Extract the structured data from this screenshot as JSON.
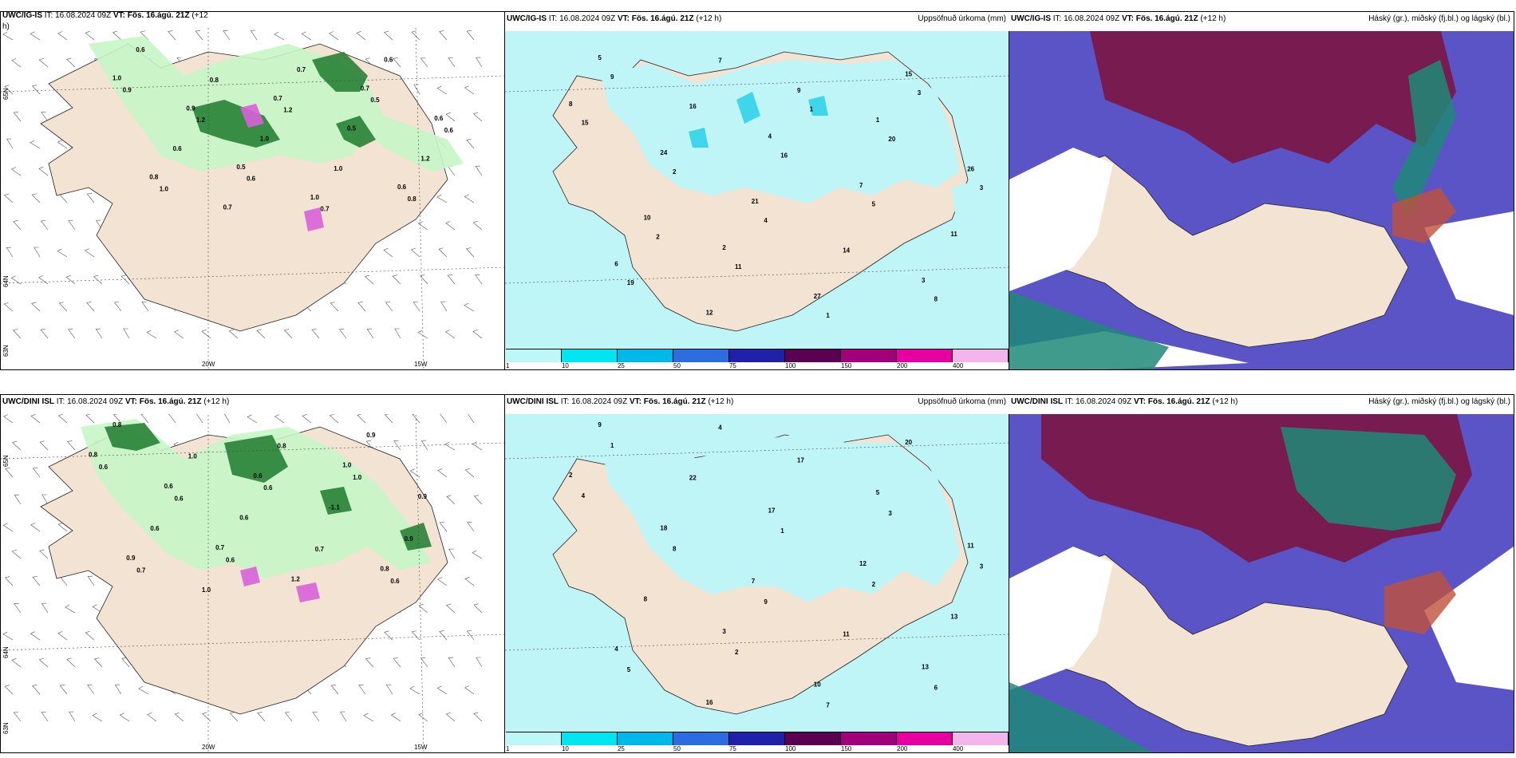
{
  "panels": [
    {
      "model": "UWC/IG-IS",
      "it_label": "IT:",
      "init_time": "16.08.2024 09Z",
      "vt_label": "VT:",
      "valid_time": "Fös. 16.ágú. 21Z",
      "lead": "(+12",
      "lead_cont": "h)",
      "right_title": "",
      "lon_labels": [
        "20W",
        "15W"
      ],
      "lat_labels": [
        "65N",
        "64N",
        "63N"
      ],
      "values": [
        "1.0",
        "0.5",
        "0.7",
        "0.8",
        "0.7",
        "0.6",
        "0.9",
        "1.0",
        "0.6",
        "0.7",
        "0.5",
        "0.6",
        "1.0",
        "0.6",
        "0.6",
        "0.7",
        "1.2",
        "0.8",
        "1.0",
        "0.9",
        "0.6",
        "0.5",
        "1.0",
        "1.2",
        "0.8",
        "1.2",
        "0.7",
        "0.6"
      ]
    },
    {
      "model": "UWC/IG-IS",
      "it_label": "IT:",
      "init_time": "16.08.2024 09Z",
      "vt_label": "VT:",
      "valid_time": "Fös. 16.ágú. 21Z",
      "lead": "(+12 h)",
      "right_title": "Uppsöfnuð úrkoma (mm)",
      "values": [
        "8",
        "2",
        "1",
        "6",
        "4",
        "3",
        "24",
        "27",
        "26",
        "12",
        "7",
        "5",
        "21",
        "15",
        "10",
        "9",
        "11",
        "16",
        "14",
        "15",
        "11",
        "20",
        "19",
        "16",
        "8",
        "2",
        "1",
        "3",
        "7",
        "5",
        "9",
        "4",
        "3",
        "2",
        "1"
      ]
    },
    {
      "model": "UWC/IG-IS",
      "it_label": "IT:",
      "init_time": "16.08.2024 09Z",
      "vt_label": "VT:",
      "valid_time": "Fös. 16.ágú. 21Z",
      "lead": "(+12 h)",
      "right_title": "Háský (gr.), miðský (fj.bl.) og lágský (bl.)"
    },
    {
      "model": "UWC/DINI ISL",
      "it_label": "IT:",
      "init_time": "16.08.2024 09Z",
      "vt_label": "VT:",
      "valid_time": "Fös. 16.ágú. 21Z",
      "lead": "(+12 h)",
      "right_title": "",
      "lon_labels": [
        "20W",
        "15W"
      ],
      "lat_labels": [
        "65N",
        "64N",
        "63N"
      ],
      "values": [
        "0.8",
        "0.7",
        "1.0",
        "0.9",
        "0.6",
        "0.8",
        "0.6",
        "1.2",
        "0.9",
        "1.0",
        "-1.1",
        "0.8",
        "0.6",
        "0.9",
        "0.6",
        "0.8",
        "0.9",
        "1.0",
        "0.7",
        "0.6",
        "0.6",
        "1.0",
        "0.7",
        "0.6",
        "0.6",
        "0.6"
      ]
    },
    {
      "model": "UWC/DINI ISL",
      "it_label": "IT:",
      "init_time": "16.08.2024 09Z",
      "vt_label": "VT:",
      "valid_time": "Fös. 16.ágú. 21Z",
      "lead": "(+12 h)",
      "right_title": "Uppsöfnuð úrkoma (mm)",
      "values": [
        "2",
        "3",
        "5",
        "4",
        "17",
        "13",
        "18",
        "10",
        "11",
        "16",
        "12",
        "9",
        "7",
        "20",
        "8",
        "17",
        "13",
        "22",
        "11",
        "4",
        "2",
        "3",
        "5",
        "1",
        "6",
        "8",
        "7",
        "3",
        "4",
        "2",
        "1",
        "9"
      ]
    },
    {
      "model": "UWC/DINI ISL",
      "it_label": "IT:",
      "init_time": "16.08.2024 09Z",
      "vt_label": "VT:",
      "valid_time": "Fös. 16.ágú. 21Z",
      "lead": "(+12 h)",
      "right_title": "Háský (gr.), miðský (fj.bl.) og lágský (bl.)"
    }
  ],
  "precip_legend": {
    "ticks": [
      "1",
      "10",
      "25",
      "50",
      "75",
      "100",
      "150",
      "200",
      "400"
    ],
    "colors": [
      "#bdf7f7",
      "#00e5f0",
      "#00b8e8",
      "#2d6bdf",
      "#2020a8",
      "#5a0050",
      "#a0007a",
      "#e600a0",
      "#f3b6ec"
    ]
  },
  "colors": {
    "land": "#f2e3d3",
    "sea": "#ffffff",
    "rain_light": "#c6f5c6",
    "rain_mid": "#7fd67f",
    "rain_heavy": "#1e7a2e",
    "hail": "#d860d8",
    "precip_light": "#bff5f7",
    "precip_mid": "#3fd5ea",
    "high_cloud": "#7a1747",
    "mid_cloud": "#5b54c6",
    "low_cloud": "#1e8a78"
  }
}
